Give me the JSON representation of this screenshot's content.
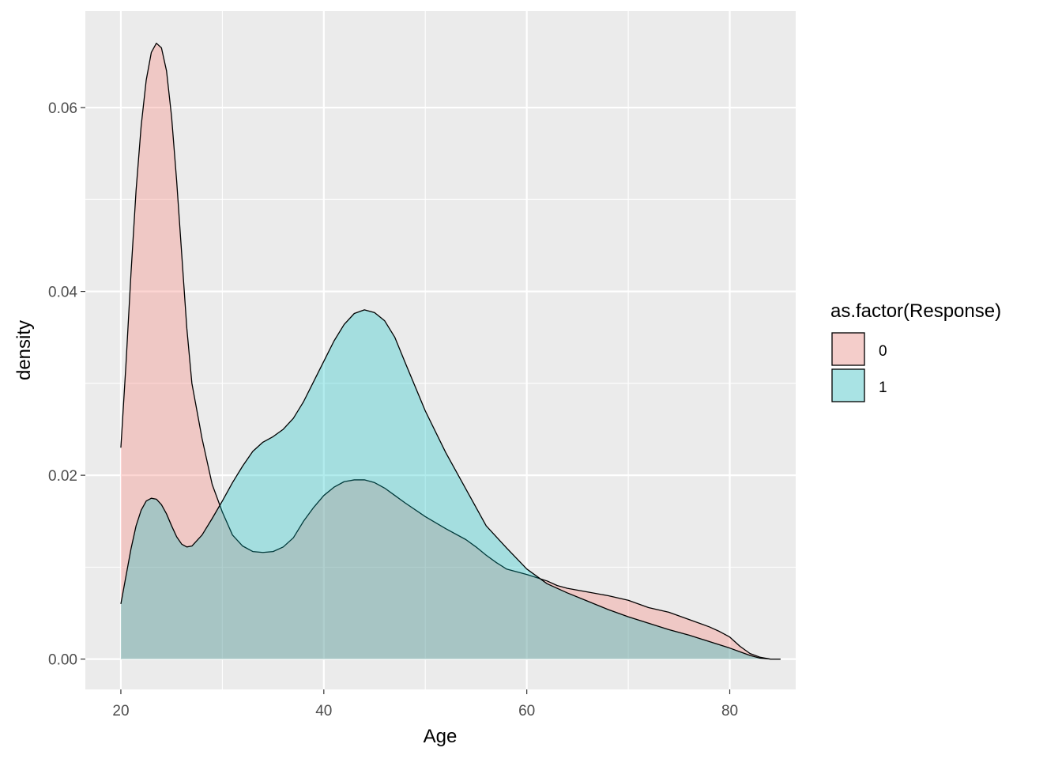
{
  "chart_data": {
    "type": "area",
    "title": "",
    "xlabel": "Age",
    "ylabel": "density",
    "xlim": [
      16.5,
      86.5
    ],
    "ylim": [
      -0.0033,
      0.0705
    ],
    "x_ticks": [
      20,
      40,
      60,
      80
    ],
    "x_tick_labels": [
      "20",
      "40",
      "60",
      "80"
    ],
    "y_ticks": [
      0.0,
      0.02,
      0.04,
      0.06
    ],
    "y_tick_labels": [
      "0.00",
      "0.02",
      "0.04",
      "0.06"
    ],
    "grid": true,
    "legend": {
      "title": "as.factor(Response)",
      "position": "right"
    },
    "series": [
      {
        "name": "0",
        "color": "#F8766D",
        "points": [
          [
            20,
            0.023
          ],
          [
            20.5,
            0.032
          ],
          [
            21,
            0.042
          ],
          [
            21.5,
            0.051
          ],
          [
            22,
            0.058
          ],
          [
            22.5,
            0.063
          ],
          [
            23,
            0.066
          ],
          [
            23.5,
            0.067
          ],
          [
            24,
            0.0665
          ],
          [
            24.5,
            0.064
          ],
          [
            25,
            0.059
          ],
          [
            25.5,
            0.052
          ],
          [
            26,
            0.044
          ],
          [
            26.5,
            0.036
          ],
          [
            27,
            0.03
          ],
          [
            28,
            0.024
          ],
          [
            29,
            0.019
          ],
          [
            30,
            0.016
          ],
          [
            31,
            0.0135
          ],
          [
            32,
            0.0123
          ],
          [
            33,
            0.0117
          ],
          [
            34,
            0.0116
          ],
          [
            35,
            0.0117
          ],
          [
            36,
            0.0122
          ],
          [
            37,
            0.0132
          ],
          [
            38,
            0.015
          ],
          [
            39,
            0.0165
          ],
          [
            40,
            0.0178
          ],
          [
            41,
            0.0187
          ],
          [
            42,
            0.0193
          ],
          [
            43,
            0.0195
          ],
          [
            44,
            0.0195
          ],
          [
            45,
            0.0192
          ],
          [
            46,
            0.0186
          ],
          [
            47,
            0.0178
          ],
          [
            48,
            0.017
          ],
          [
            50,
            0.0155
          ],
          [
            52,
            0.0142
          ],
          [
            54,
            0.013
          ],
          [
            55,
            0.0122
          ],
          [
            56,
            0.0113
          ],
          [
            57,
            0.0105
          ],
          [
            58,
            0.0098
          ],
          [
            60,
            0.0092
          ],
          [
            62,
            0.0085
          ],
          [
            63,
            0.008
          ],
          [
            64,
            0.0077
          ],
          [
            66,
            0.0073
          ],
          [
            68,
            0.0069
          ],
          [
            70,
            0.0064
          ],
          [
            71,
            0.006
          ],
          [
            72,
            0.0056
          ],
          [
            74,
            0.0051
          ],
          [
            76,
            0.0043
          ],
          [
            78,
            0.0035
          ],
          [
            79,
            0.003
          ],
          [
            80,
            0.0024
          ],
          [
            81,
            0.0014
          ],
          [
            82,
            0.0006
          ],
          [
            83,
            0.0002
          ],
          [
            84,
            0.0
          ],
          [
            85,
            0.0
          ]
        ]
      },
      {
        "name": "1",
        "color": "#00BFC4",
        "points": [
          [
            20,
            0.006
          ],
          [
            20.5,
            0.009
          ],
          [
            21,
            0.012
          ],
          [
            21.5,
            0.0145
          ],
          [
            22,
            0.0162
          ],
          [
            22.5,
            0.0172
          ],
          [
            23,
            0.0175
          ],
          [
            23.5,
            0.0174
          ],
          [
            24,
            0.0168
          ],
          [
            24.5,
            0.0158
          ],
          [
            25,
            0.0145
          ],
          [
            25.5,
            0.0133
          ],
          [
            26,
            0.0125
          ],
          [
            26.5,
            0.0122
          ],
          [
            27,
            0.0123
          ],
          [
            28,
            0.0135
          ],
          [
            29,
            0.0153
          ],
          [
            30,
            0.0172
          ],
          [
            31,
            0.0192
          ],
          [
            32,
            0.021
          ],
          [
            33,
            0.0226
          ],
          [
            34,
            0.0236
          ],
          [
            35,
            0.0242
          ],
          [
            36,
            0.025
          ],
          [
            37,
            0.0262
          ],
          [
            38,
            0.028
          ],
          [
            39,
            0.0302
          ],
          [
            40,
            0.0324
          ],
          [
            41,
            0.0346
          ],
          [
            42,
            0.0364
          ],
          [
            43,
            0.0376
          ],
          [
            44,
            0.038
          ],
          [
            45,
            0.0377
          ],
          [
            46,
            0.0368
          ],
          [
            47,
            0.035
          ],
          [
            48,
            0.0323
          ],
          [
            50,
            0.027
          ],
          [
            52,
            0.0225
          ],
          [
            54,
            0.0185
          ],
          [
            56,
            0.0145
          ],
          [
            58,
            0.0121
          ],
          [
            60,
            0.0098
          ],
          [
            62,
            0.0082
          ],
          [
            64,
            0.0072
          ],
          [
            66,
            0.0063
          ],
          [
            68,
            0.0054
          ],
          [
            70,
            0.0046
          ],
          [
            72,
            0.0039
          ],
          [
            74,
            0.0032
          ],
          [
            76,
            0.0026
          ],
          [
            78,
            0.0019
          ],
          [
            80,
            0.0012
          ],
          [
            81,
            0.0008
          ],
          [
            82,
            0.0004
          ],
          [
            83,
            0.0001
          ],
          [
            84,
            0.0
          ],
          [
            85,
            0.0
          ]
        ]
      }
    ]
  },
  "colors": {
    "panel_background": "#EBEBEB",
    "grid_major": "#FFFFFF",
    "outline": "#000000"
  }
}
